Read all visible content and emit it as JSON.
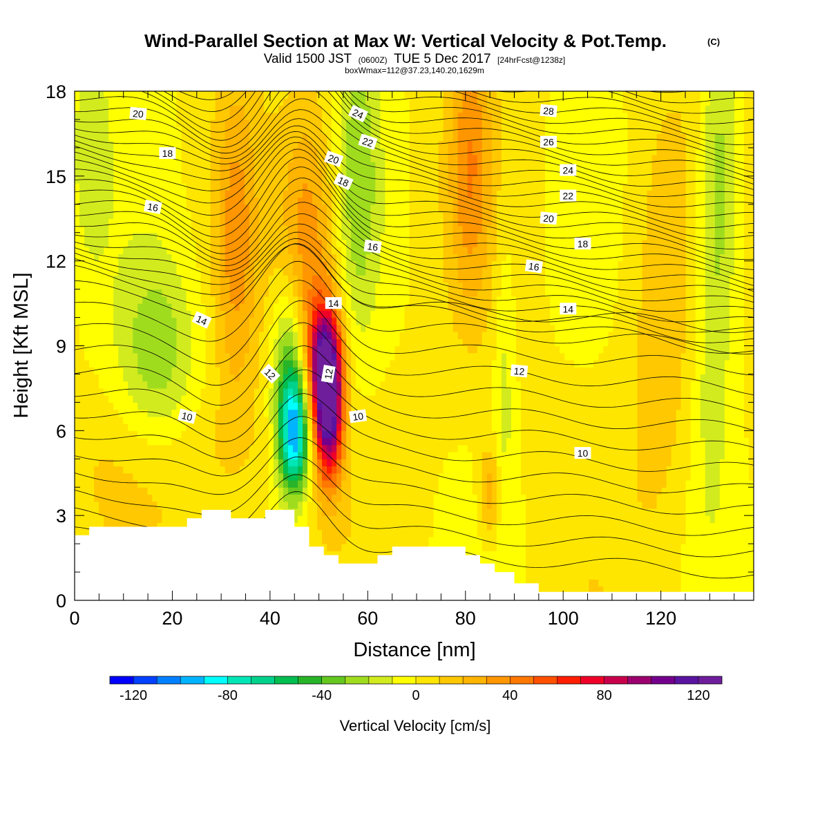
{
  "title": {
    "main": "Wind-Parallel Section at Max W: Vertical Velocity & Pot.Temp.",
    "copyright": "(C)",
    "valid_prefix": "Valid 1500 JST",
    "valid_utc": "(0600Z)",
    "valid_date": "TUE 5 Dec 2017",
    "forecast_info": "[24hrFcst@1238z]",
    "box_info": "boxWmax=112@37.23,140.20,1629m"
  },
  "colors": {
    "terrain": "#ffffff",
    "contour": "#000000",
    "background": "#ffffff"
  },
  "chart_data": {
    "type": "heatmap",
    "xlabel": "Distance [nm]",
    "ylabel": "Height [Kft MSL]",
    "xlim": [
      0,
      139
    ],
    "ylim": [
      0,
      18
    ],
    "x_ticks": [
      0,
      20,
      40,
      60,
      80,
      100,
      120
    ],
    "y_ticks": [
      0,
      3,
      6,
      9,
      12,
      15,
      18
    ],
    "colorbar": {
      "title": "Vertical Velocity [cm/s]",
      "min": -130,
      "max": 130,
      "step": 10,
      "tick_values": [
        -120,
        -80,
        -40,
        0,
        40,
        80,
        120
      ],
      "colors": [
        "#0000ff",
        "#0040ff",
        "#0080ff",
        "#00b4ff",
        "#00ffff",
        "#00e6b4",
        "#00d28c",
        "#00be50",
        "#28b428",
        "#64c81e",
        "#a0dc1e",
        "#d2eb1e",
        "#ffff00",
        "#ffe600",
        "#ffc800",
        "#ffb400",
        "#ff9600",
        "#ff7800",
        "#ff5000",
        "#ff1e00",
        "#f00028",
        "#c8004b",
        "#9b006e",
        "#73008c",
        "#5a14a0",
        "#6e1e9b"
      ]
    },
    "terrain_profile": [
      [
        0,
        2.3
      ],
      [
        3,
        2.3
      ],
      [
        3,
        2.6
      ],
      [
        23,
        2.6
      ],
      [
        23,
        2.9
      ],
      [
        26,
        2.9
      ],
      [
        26,
        3.2
      ],
      [
        32,
        3.2
      ],
      [
        32,
        2.9
      ],
      [
        39,
        2.9
      ],
      [
        39,
        3.2
      ],
      [
        45,
        3.2
      ],
      [
        45,
        2.6
      ],
      [
        48,
        2.6
      ],
      [
        48,
        1.9
      ],
      [
        51,
        1.9
      ],
      [
        51,
        1.6
      ],
      [
        54,
        1.6
      ],
      [
        54,
        1.3
      ],
      [
        62,
        1.3
      ],
      [
        62,
        1.6
      ],
      [
        65,
        1.6
      ],
      [
        65,
        1.9
      ],
      [
        80,
        1.9
      ],
      [
        80,
        1.6
      ],
      [
        83,
        1.6
      ],
      [
        83,
        1.3
      ],
      [
        86,
        1.3
      ],
      [
        86,
        1.0
      ],
      [
        90,
        1.0
      ],
      [
        90,
        0.6
      ],
      [
        95,
        0.6
      ],
      [
        95,
        0.3
      ],
      [
        139,
        0.3
      ]
    ],
    "vertical_velocity_features": [
      {
        "x": 45,
        "z": 5.8,
        "w": -85,
        "sx": 2.2,
        "sz": 1.5
      },
      {
        "x": 44,
        "z": 8.0,
        "w": -45,
        "sx": 2.5,
        "sz": 2.2
      },
      {
        "x": 52,
        "z": 6.8,
        "w": 110,
        "sx": 2.0,
        "sz": 1.8
      },
      {
        "x": 51,
        "z": 8.5,
        "w": 75,
        "sx": 2.5,
        "sz": 1.5
      },
      {
        "x": 48,
        "z": 12.5,
        "w": 35,
        "sx": 4.0,
        "sz": 3.5
      },
      {
        "x": 33,
        "z": 12.5,
        "w": 28,
        "sx": 3.0,
        "sz": 4.0
      },
      {
        "x": 81,
        "z": 15.5,
        "w": 32,
        "sx": 3.0,
        "sz": 3.5
      },
      {
        "x": 85,
        "z": 3.8,
        "w": 28,
        "sx": 1.5,
        "sz": 1.2
      },
      {
        "x": 17,
        "z": 8.5,
        "w": -28,
        "sx": 6.0,
        "sz": 2.5
      },
      {
        "x": 58,
        "z": 15.0,
        "w": -25,
        "sx": 3.0,
        "sz": 4.0
      },
      {
        "x": 132,
        "z": 15.0,
        "w": -30,
        "sx": 3.0,
        "sz": 4.0
      },
      {
        "x": 130,
        "z": 8.0,
        "w": -15,
        "sx": 3.0,
        "sz": 4.0
      },
      {
        "x": 3,
        "z": 16.0,
        "w": -18,
        "sx": 3.0,
        "sz": 3.0
      },
      {
        "x": 88,
        "z": 8.0,
        "w": -15,
        "sx": 1.5,
        "sz": 4.0
      },
      {
        "x": 120,
        "z": 9.0,
        "w": 14,
        "sx": 5.0,
        "sz": 6.0
      },
      {
        "x": 22,
        "z": 5.0,
        "w": 10,
        "sx": 20.0,
        "sz": 2.0
      }
    ],
    "theta_contours": [
      {
        "label": "10",
        "label_pos": [
          23,
          6.5
        ],
        "label_angle": 14
      },
      {
        "label": "10",
        "label_pos": [
          58,
          6.5
        ],
        "label_angle": -8
      },
      {
        "label": "10",
        "label_pos": [
          104,
          5.2
        ],
        "label_angle": 0
      },
      {
        "label": "12",
        "label_pos": [
          40,
          8.0
        ],
        "label_angle": 45
      },
      {
        "label": "12",
        "label_pos": [
          52,
          8.0
        ],
        "label_angle": -80
      },
      {
        "label": "12",
        "label_pos": [
          91,
          8.1
        ],
        "label_angle": 5
      },
      {
        "label": "14",
        "label_pos": [
          26,
          9.9
        ],
        "label_angle": 25
      },
      {
        "label": "14",
        "label_pos": [
          53,
          10.5
        ],
        "label_angle": 0
      },
      {
        "label": "14",
        "label_pos": [
          101,
          10.3
        ],
        "label_angle": 0
      },
      {
        "label": "16",
        "label_pos": [
          16,
          13.9
        ],
        "label_angle": 10
      },
      {
        "label": "16",
        "label_pos": [
          61,
          12.5
        ],
        "label_angle": 8
      },
      {
        "label": "16",
        "label_pos": [
          94,
          11.8
        ],
        "label_angle": 8
      },
      {
        "label": "18",
        "label_pos": [
          19,
          15.8
        ],
        "label_angle": 0
      },
      {
        "label": "18",
        "label_pos": [
          55,
          14.8
        ],
        "label_angle": 25
      },
      {
        "label": "18",
        "label_pos": [
          104,
          12.6
        ],
        "label_angle": 0
      },
      {
        "label": "20",
        "label_pos": [
          13,
          17.2
        ],
        "label_angle": 5
      },
      {
        "label": "20",
        "label_pos": [
          53,
          15.6
        ],
        "label_angle": 20
      },
      {
        "label": "20",
        "label_pos": [
          97,
          13.5
        ],
        "label_angle": 5
      },
      {
        "label": "22",
        "label_pos": [
          60,
          16.2
        ],
        "label_angle": 18
      },
      {
        "label": "22",
        "label_pos": [
          101,
          14.3
        ],
        "label_angle": 0
      },
      {
        "label": "24",
        "label_pos": [
          58,
          17.2
        ],
        "label_angle": 25
      },
      {
        "label": "24",
        "label_pos": [
          101,
          15.2
        ],
        "label_angle": 0
      },
      {
        "label": "26",
        "label_pos": [
          97,
          16.2
        ],
        "label_angle": 0
      },
      {
        "label": "28",
        "label_pos": [
          97,
          17.3
        ],
        "label_angle": 5
      }
    ]
  }
}
